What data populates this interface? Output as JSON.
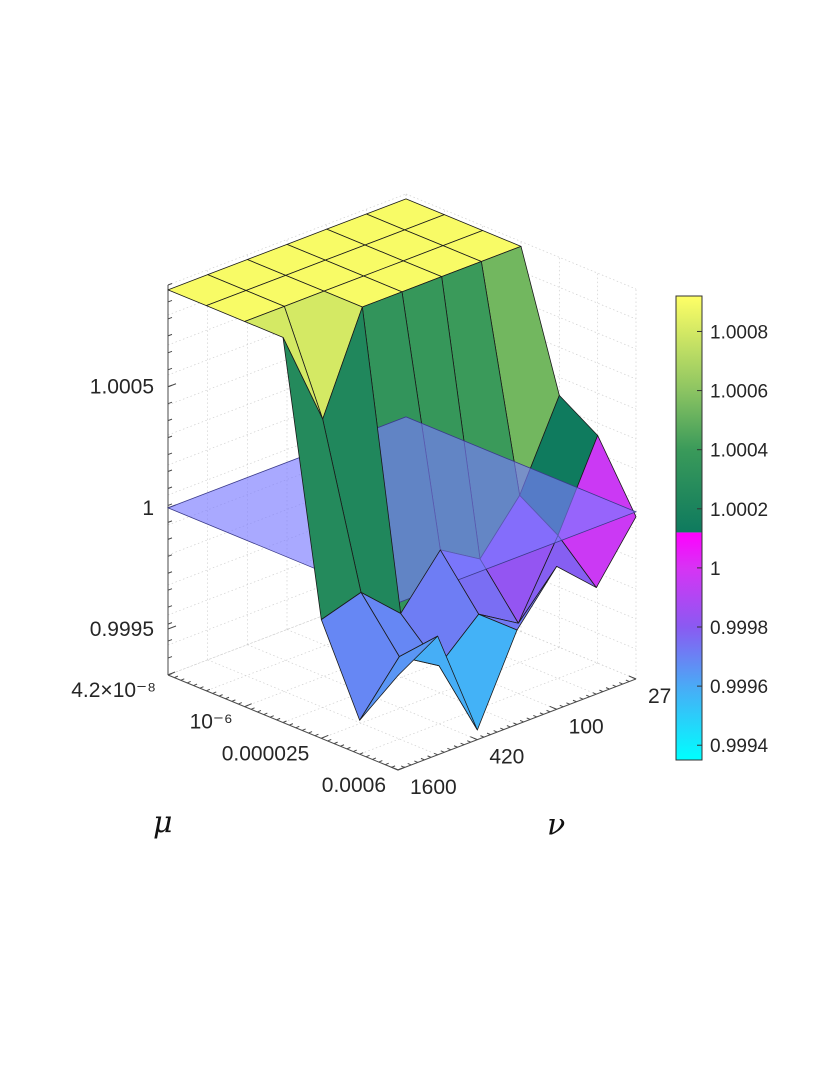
{
  "chart_data": {
    "type": "surface3d",
    "z_axis": {
      "ticks": [
        {
          "value": 0.9995,
          "label": "0.9995"
        },
        {
          "value": 1.0,
          "label": "1"
        },
        {
          "value": 1.0005,
          "label": "1.0005"
        }
      ],
      "zlim": [
        0.99931,
        1.00092
      ]
    },
    "mu_axis": {
      "label": "μ",
      "tick_labels": [
        "4.2×10⁻⁸",
        "10⁻⁶",
        "0.000025",
        "0.0006"
      ]
    },
    "nu_axis": {
      "label": "ν",
      "tick_labels": [
        "27",
        "100",
        "420",
        "1600"
      ]
    },
    "mu_index_of_tick": [
      0,
      2,
      4,
      6
    ],
    "nu_index_of_tick": [
      0,
      2,
      4,
      6
    ],
    "reference_plane_z": 1.0,
    "grid_values": [
      [
        1.0009,
        1.0009,
        1.0009,
        1.0009,
        1.0009,
        1.0009,
        1.0009
      ],
      [
        1.0009,
        1.0009,
        1.0009,
        1.0009,
        1.0009,
        1.0009,
        1.0009
      ],
      [
        1.0009,
        1.0009,
        1.0009,
        1.0009,
        1.0009,
        1.0009,
        1.0009
      ],
      [
        1.0009,
        1.0009,
        1.0009,
        1.0009,
        1.0009,
        1.0005,
        1.0009
      ],
      [
        1.00035,
        1.0,
        0.9998,
        0.9999,
        0.9997,
        0.99985,
        0.9998
      ],
      [
        1.00025,
        0.9999,
        0.9996,
        0.9997,
        0.99955,
        0.99965,
        0.99945
      ],
      [
        0.99998,
        0.99975,
        0.9999,
        0.9997,
        0.99935,
        0.9998,
        0.9997
      ]
    ],
    "colorbar": {
      "range": [
        0.99935,
        1.00092
      ],
      "ticks": [
        {
          "value": 0.9994,
          "label": "0.9994"
        },
        {
          "value": 0.9996,
          "label": "0.9996"
        },
        {
          "value": 0.9998,
          "label": "0.9998"
        },
        {
          "value": 1.0,
          "label": "1"
        },
        {
          "value": 1.0002,
          "label": "1.0002"
        },
        {
          "value": 1.0004,
          "label": "1.0004"
        },
        {
          "value": 1.0006,
          "label": "1.0006"
        },
        {
          "value": 1.0008,
          "label": "1.0008"
        }
      ],
      "stops_below_1": [
        {
          "value": 0.99935,
          "color": "#00ffff"
        },
        {
          "value": 0.9996,
          "color": "#4aaaf6"
        },
        {
          "value": 0.9998,
          "color": "#8a5af2"
        },
        {
          "value": 1.0,
          "color": "#d733f4"
        },
        {
          "value": 1.00012,
          "color": "#ff00ff"
        }
      ],
      "stops_above_1": [
        {
          "value": 1.00012,
          "color": "#0e7a5e"
        },
        {
          "value": 1.0004,
          "color": "#3a9a5a"
        },
        {
          "value": 1.0006,
          "color": "#8cc462"
        },
        {
          "value": 1.00092,
          "color": "#ffff66"
        }
      ]
    },
    "grid": "on"
  }
}
